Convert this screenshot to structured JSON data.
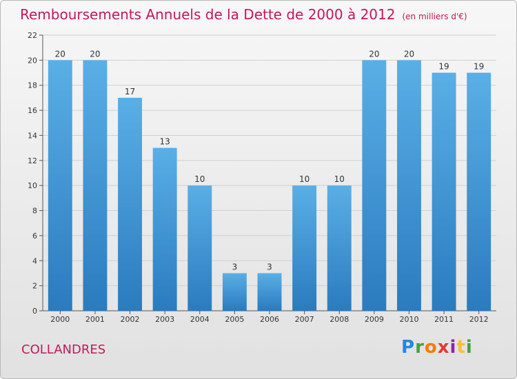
{
  "header": {
    "title": "Remboursements Annuels de la Dette de 2000 à 2012",
    "subtitle": "(en milliers d'€)"
  },
  "footer": {
    "town": "COLLANDRES",
    "logo_text": "Proxiti"
  },
  "colors": {
    "title": "#c2185b",
    "bar_top": "#5aafe6",
    "bar_bottom": "#2a7bbf",
    "gridline": "#cfcfcf"
  },
  "chart_data": {
    "type": "bar",
    "title": "Remboursements Annuels de la Dette de 2000 à 2012",
    "subtitle": "(en milliers d'€)",
    "xlabel": "",
    "ylabel": "",
    "categories": [
      "2000",
      "2001",
      "2002",
      "2003",
      "2004",
      "2005",
      "2006",
      "2007",
      "2008",
      "2009",
      "2010",
      "2011",
      "2012"
    ],
    "values": [
      20,
      20,
      17,
      13,
      10,
      3,
      3,
      10,
      10,
      20,
      20,
      19,
      19
    ],
    "ylim": [
      0,
      22
    ],
    "yticks": [
      0,
      2,
      4,
      6,
      8,
      10,
      12,
      14,
      16,
      18,
      20,
      22
    ],
    "grid": true,
    "data_labels": true
  }
}
